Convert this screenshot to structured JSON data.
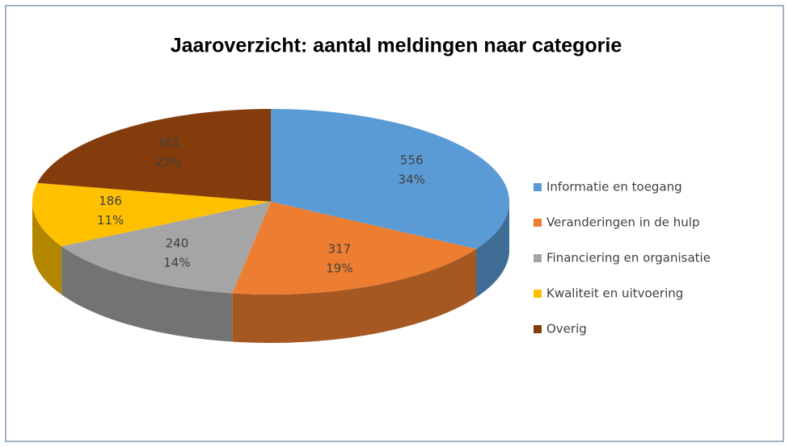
{
  "chart_data": {
    "type": "pie3d",
    "title": "Jaaroverzicht: aantal meldingen naar categorie",
    "categories": [
      "Informatie en toegang",
      "Veranderingen in de hulp",
      "Financiering en organisatie",
      "Kwaliteit en uitvoering",
      "Overig"
    ],
    "values": [
      556,
      317,
      240,
      186,
      361
    ],
    "percent_labels": [
      "34%",
      "19%",
      "14%",
      "11%",
      "22%"
    ],
    "colors": [
      "#5b9bd5",
      "#ed7d31",
      "#a5a5a5",
      "#ffc000",
      "#843c0c"
    ],
    "legend": "right"
  }
}
